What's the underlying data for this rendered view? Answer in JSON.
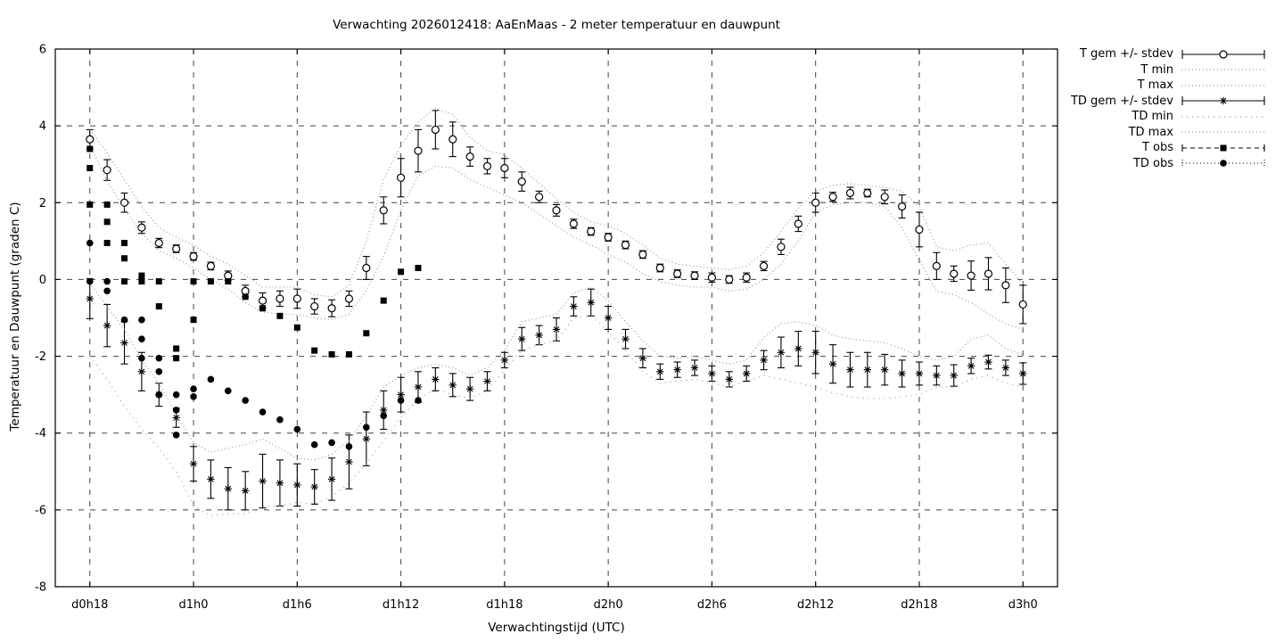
{
  "chart_data": {
    "type": "line",
    "title": "Verwachting 2026012418: AaEnMaas - 2 meter temperatuur en dauwpunt",
    "xlabel": "Verwachtingstijd (UTC)",
    "ylabel": "Temperatuur en Dauwpunt (graden C)",
    "x_tick_labels": [
      "d0h18",
      "d1h0",
      "d1h6",
      "d1h12",
      "d1h18",
      "d2h0",
      "d2h6",
      "d2h12",
      "d2h18",
      "d3h0"
    ],
    "x_tick_hours": [
      0,
      6,
      12,
      18,
      24,
      30,
      36,
      42,
      48,
      54
    ],
    "xlim_hours": [
      -2,
      56
    ],
    "ylim": [
      -8,
      6
    ],
    "y_ticks": [
      6,
      4,
      2,
      0,
      -2,
      -4,
      -6,
      -8
    ],
    "grid": true,
    "legend_position": "outside-right",
    "series": [
      {
        "id": "t_gem",
        "name": "T gem +/- stdev",
        "style": "errorbar-circle-open",
        "values": [
          3.65,
          2.85,
          2.0,
          1.35,
          0.95,
          0.8,
          0.6,
          0.35,
          0.1,
          -0.3,
          -0.55,
          -0.5,
          -0.5,
          -0.7,
          -0.75,
          -0.5,
          0.3,
          1.8,
          2.65,
          3.35,
          3.9,
          3.65,
          3.2,
          2.95,
          2.9,
          2.55,
          2.15,
          1.8,
          1.45,
          1.25,
          1.1,
          0.9,
          0.65,
          0.3,
          0.15,
          0.1,
          0.05,
          0.0,
          0.05,
          0.35,
          0.85,
          1.45,
          2.0,
          2.15,
          2.25,
          2.25,
          2.15,
          1.9,
          1.3,
          0.35,
          0.15,
          0.1,
          0.15,
          -0.15,
          -0.65
        ],
        "stdev": [
          0.25,
          0.27,
          0.25,
          0.15,
          0.12,
          0.1,
          0.1,
          0.1,
          0.12,
          0.15,
          0.2,
          0.2,
          0.25,
          0.2,
          0.22,
          0.2,
          0.3,
          0.35,
          0.5,
          0.55,
          0.5,
          0.45,
          0.25,
          0.2,
          0.25,
          0.25,
          0.15,
          0.15,
          0.12,
          0.1,
          0.1,
          0.1,
          0.1,
          0.1,
          0.1,
          0.1,
          0.12,
          0.1,
          0.12,
          0.12,
          0.2,
          0.2,
          0.25,
          0.12,
          0.15,
          0.1,
          0.18,
          0.3,
          0.45,
          0.35,
          0.2,
          0.38,
          0.42,
          0.45,
          0.5
        ]
      },
      {
        "id": "t_min",
        "name": "T min",
        "style": "dotted",
        "values": [
          3.5,
          2.55,
          1.85,
          1.2,
          0.75,
          0.55,
          0.3,
          0.0,
          -0.25,
          -0.6,
          -0.85,
          -0.9,
          -0.92,
          -1.0,
          -1.05,
          -0.9,
          -0.3,
          0.6,
          1.8,
          2.7,
          2.95,
          2.9,
          2.6,
          2.4,
          2.2,
          2.0,
          1.7,
          1.4,
          1.1,
          0.9,
          0.65,
          0.45,
          0.15,
          -0.05,
          -0.15,
          -0.2,
          -0.2,
          -0.3,
          -0.25,
          0.0,
          0.4,
          1.0,
          1.75,
          1.95,
          2.0,
          2.0,
          1.9,
          1.35,
          0.5,
          -0.3,
          -0.4,
          -0.6,
          -0.9,
          -1.15,
          -1.3
        ]
      },
      {
        "id": "t_max",
        "name": "T max",
        "style": "dotted",
        "values": [
          3.9,
          3.3,
          2.6,
          1.9,
          1.35,
          1.1,
          0.9,
          0.6,
          0.4,
          0.1,
          -0.2,
          -0.2,
          -0.2,
          -0.4,
          -0.45,
          -0.15,
          1.0,
          2.6,
          3.5,
          4.1,
          4.45,
          4.3,
          3.7,
          3.35,
          3.25,
          2.9,
          2.5,
          2.1,
          1.75,
          1.5,
          1.4,
          1.2,
          0.9,
          0.55,
          0.4,
          0.35,
          0.3,
          0.25,
          0.35,
          0.7,
          1.25,
          1.85,
          2.3,
          2.45,
          2.5,
          2.45,
          2.4,
          2.3,
          1.9,
          0.85,
          0.75,
          0.9,
          0.95,
          0.4,
          -0.1
        ]
      },
      {
        "id": "td_gem",
        "name": "TD gem +/- stdev",
        "style": "errorbar-asterisk",
        "values": [
          -0.5,
          -1.2,
          -1.65,
          -2.4,
          -3.0,
          -3.6,
          -4.8,
          -5.2,
          -5.45,
          -5.5,
          -5.25,
          -5.3,
          -5.35,
          -5.4,
          -5.2,
          -4.75,
          -4.15,
          -3.4,
          -3.0,
          -2.8,
          -2.6,
          -2.75,
          -2.85,
          -2.65,
          -2.1,
          -1.55,
          -1.45,
          -1.3,
          -0.7,
          -0.6,
          -1.0,
          -1.55,
          -2.05,
          -2.4,
          -2.35,
          -2.3,
          -2.45,
          -2.6,
          -2.45,
          -2.1,
          -1.9,
          -1.8,
          -1.9,
          -2.2,
          -2.35,
          -2.35,
          -2.35,
          -2.45,
          -2.45,
          -2.5,
          -2.5,
          -2.25,
          -2.15,
          -2.3,
          -2.45
        ],
        "stdev": [
          0.52,
          0.55,
          0.55,
          0.5,
          0.3,
          0.25,
          0.45,
          0.5,
          0.55,
          0.5,
          0.7,
          0.6,
          0.55,
          0.45,
          0.55,
          0.7,
          0.7,
          0.5,
          0.45,
          0.4,
          0.3,
          0.3,
          0.3,
          0.25,
          0.2,
          0.3,
          0.25,
          0.3,
          0.25,
          0.35,
          0.3,
          0.25,
          0.25,
          0.2,
          0.2,
          0.2,
          0.2,
          0.2,
          0.2,
          0.25,
          0.4,
          0.45,
          0.55,
          0.5,
          0.45,
          0.45,
          0.4,
          0.35,
          0.3,
          0.25,
          0.28,
          0.2,
          0.18,
          0.2,
          0.28
        ]
      },
      {
        "id": "td_min",
        "name": "TD min",
        "style": "dotted-sparse",
        "values": [
          -2.0,
          -2.6,
          -3.3,
          -3.9,
          -4.4,
          -5.0,
          -5.9,
          -6.15,
          -6.1,
          -6.1,
          -5.9,
          -5.9,
          -5.8,
          -5.85,
          -5.65,
          -5.3,
          -4.8,
          -4.2,
          -3.6,
          -3.1,
          -2.85,
          -3.0,
          -3.1,
          -2.9,
          -2.35,
          -1.85,
          -1.7,
          -1.6,
          -1.0,
          -0.95,
          -1.35,
          -1.85,
          -2.4,
          -2.7,
          -2.65,
          -2.6,
          -2.7,
          -2.8,
          -2.65,
          -2.5,
          -2.6,
          -2.7,
          -2.8,
          -2.95,
          -3.05,
          -3.1,
          -3.1,
          -3.05,
          -3.0,
          -2.8,
          -2.8,
          -2.6,
          -2.5,
          -2.7,
          -2.8
        ]
      },
      {
        "id": "td_max",
        "name": "TD max",
        "style": "dotted",
        "values": [
          -0.1,
          -0.7,
          -1.3,
          -2.1,
          -2.7,
          -3.5,
          -4.25,
          -4.5,
          -4.4,
          -4.3,
          -4.15,
          -4.4,
          -4.65,
          -4.7,
          -4.55,
          -4.2,
          -3.55,
          -2.8,
          -2.5,
          -2.3,
          -2.2,
          -2.3,
          -2.5,
          -2.3,
          -1.85,
          -1.1,
          -1.0,
          -0.9,
          -0.35,
          -0.2,
          -0.55,
          -1.1,
          -1.6,
          -2.0,
          -2.05,
          -2.0,
          -2.1,
          -2.2,
          -2.1,
          -1.5,
          -1.15,
          -1.1,
          -1.2,
          -1.45,
          -1.55,
          -1.6,
          -1.65,
          -1.8,
          -2.0,
          -2.1,
          -2.0,
          -1.55,
          -1.45,
          -1.8,
          -1.95
        ]
      },
      {
        "id": "t_obs",
        "name": "T obs",
        "style": "scatter-square-filled",
        "points": [
          [
            0,
            3.4
          ],
          [
            0,
            2.9
          ],
          [
            0,
            1.95
          ],
          [
            1,
            1.95
          ],
          [
            1,
            1.5
          ],
          [
            1,
            0.95
          ],
          [
            2,
            0.95
          ],
          [
            2,
            0.55
          ],
          [
            2,
            -0.05
          ],
          [
            3,
            0.1
          ],
          [
            3,
            -0.05
          ],
          [
            4,
            -0.05
          ],
          [
            4,
            -0.7
          ],
          [
            5,
            -1.8
          ],
          [
            5,
            -2.05
          ],
          [
            6,
            -0.05
          ],
          [
            6,
            -1.05
          ],
          [
            7,
            -0.05
          ],
          [
            8,
            -0.05
          ],
          [
            9,
            -0.45
          ],
          [
            10,
            -0.75
          ],
          [
            11,
            -0.95
          ],
          [
            12,
            -1.25
          ],
          [
            13,
            -1.85
          ],
          [
            14,
            -1.95
          ],
          [
            15,
            -1.95
          ],
          [
            16,
            -1.4
          ],
          [
            17,
            -0.55
          ],
          [
            18,
            0.2
          ],
          [
            19,
            0.3
          ]
        ]
      },
      {
        "id": "td_obs",
        "name": "TD obs",
        "style": "scatter-circle-filled",
        "points": [
          [
            0,
            0.95
          ],
          [
            0,
            -0.05
          ],
          [
            1,
            -0.05
          ],
          [
            1,
            -0.3
          ],
          [
            2,
            -1.05
          ],
          [
            3,
            -1.05
          ],
          [
            3,
            -1.55
          ],
          [
            3,
            -2.05
          ],
          [
            4,
            -2.05
          ],
          [
            4,
            -2.4
          ],
          [
            4,
            -3.0
          ],
          [
            5,
            -3.0
          ],
          [
            5,
            -3.4
          ],
          [
            5,
            -4.05
          ],
          [
            6,
            -2.85
          ],
          [
            6,
            -3.05
          ],
          [
            7,
            -2.6
          ],
          [
            8,
            -2.9
          ],
          [
            9,
            -3.15
          ],
          [
            10,
            -3.45
          ],
          [
            11,
            -3.65
          ],
          [
            12,
            -3.9
          ],
          [
            13,
            -4.3
          ],
          [
            14,
            -4.25
          ],
          [
            15,
            -4.35
          ],
          [
            16,
            -3.85
          ],
          [
            17,
            -3.55
          ],
          [
            18,
            -3.15
          ],
          [
            19,
            -3.15
          ]
        ]
      }
    ]
  },
  "colors": {
    "foreground": "#000000",
    "grid": "#444444",
    "dotted_line": "#999999",
    "background": "#ffffff"
  }
}
